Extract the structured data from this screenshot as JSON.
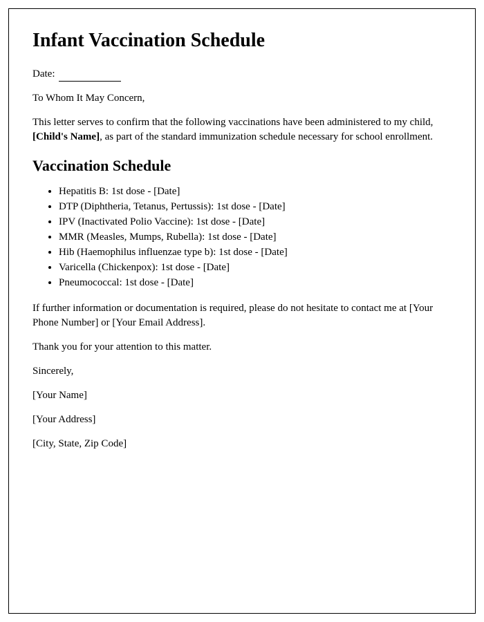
{
  "title": "Infant Vaccination Schedule",
  "date_label": "Date: ",
  "salutation": "To Whom It May Concern,",
  "intro_text_1": "This letter serves to confirm that the following vaccinations have been administered to my child, ",
  "child_name_placeholder": "[Child's Name]",
  "intro_text_2": ", as part of the standard immunization schedule necessary for school enrollment.",
  "schedule_heading": "Vaccination Schedule",
  "vaccines": [
    "Hepatitis B: 1st dose - [Date]",
    "DTP (Diphtheria, Tetanus, Pertussis): 1st dose - [Date]",
    "IPV (Inactivated Polio Vaccine): 1st dose - [Date]",
    "MMR (Measles, Mumps, Rubella): 1st dose - [Date]",
    "Hib (Haemophilus influenzae type b): 1st dose - [Date]",
    "Varicella (Chickenpox): 1st dose - [Date]",
    "Pneumococcal: 1st dose - [Date]"
  ],
  "contact_text": "If further information or documentation is required, please do not hesitate to contact me at [Your Phone Number] or [Your Email Address].",
  "thanks_text": "Thank you for your attention to this matter.",
  "closing": "Sincerely,",
  "signature_name": "[Your Name]",
  "signature_address": "[Your Address]",
  "signature_city": "[City, State, Zip Code]"
}
